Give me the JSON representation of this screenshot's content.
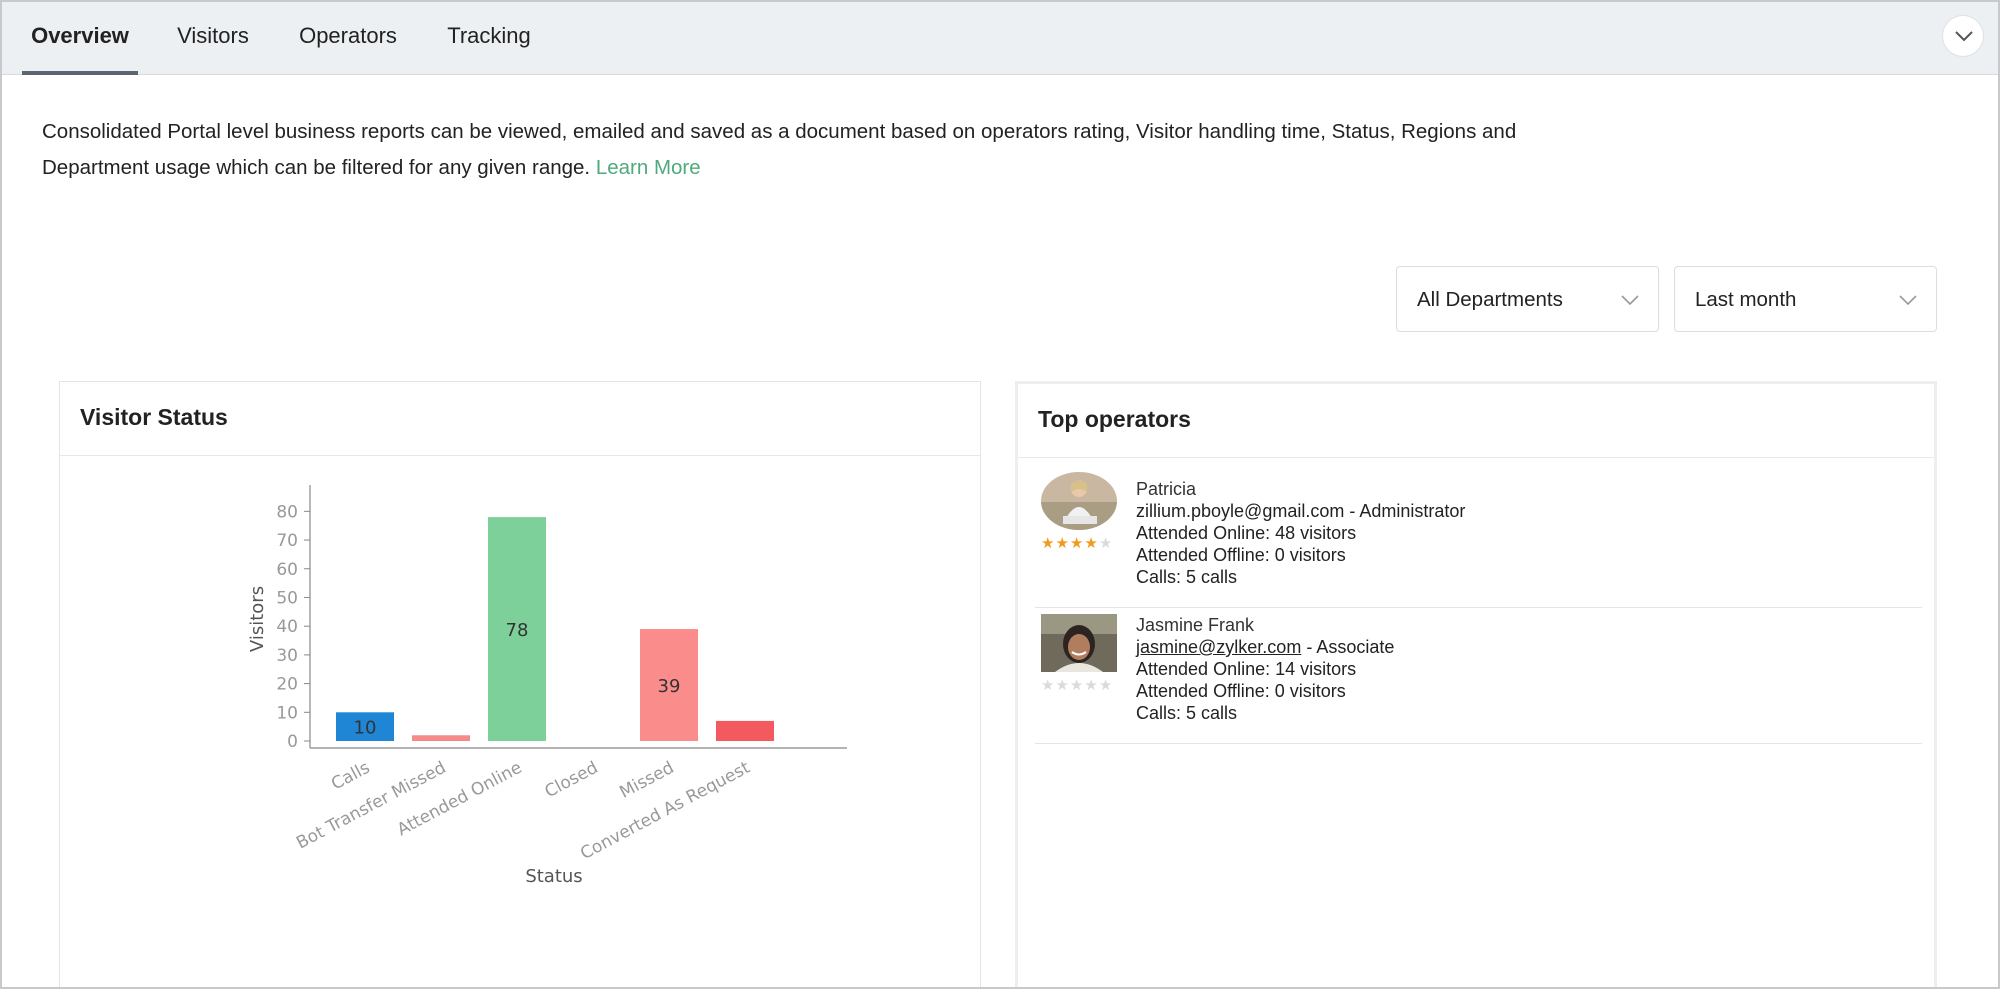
{
  "tabs": [
    {
      "label": "Overview",
      "active": true
    },
    {
      "label": "Visitors",
      "active": false
    },
    {
      "label": "Operators",
      "active": false
    },
    {
      "label": "Tracking",
      "active": false
    }
  ],
  "description": {
    "text": "Consolidated Portal level business reports can be viewed, emailed and saved as a document based on operators rating, Visitor handling time, Status, Regions and Department usage which can be filtered for any given range.",
    "learn_more": "Learn More"
  },
  "filters": {
    "department": "All Departments",
    "range": "Last month"
  },
  "visitor_status": {
    "title": "Visitor Status"
  },
  "chart_data": {
    "type": "bar",
    "title": "",
    "xlabel": "Status",
    "ylabel": "Visitors",
    "categories": [
      "Calls",
      "Bot Transfer Missed",
      "Attended Online",
      "Closed",
      "Missed",
      "Converted As Request"
    ],
    "values": [
      10,
      2,
      78,
      0,
      39,
      7
    ],
    "data_labels": [
      "10",
      "",
      "78",
      "",
      "39",
      ""
    ],
    "colors": [
      "#1f86d6",
      "#f48a8a",
      "#7ed09a",
      "#cccccc",
      "#fb8c8c",
      "#f25a60"
    ],
    "ylim": [
      0,
      85
    ],
    "yticks": [
      0,
      10,
      20,
      30,
      40,
      50,
      60,
      70,
      80
    ],
    "grid": false
  },
  "top_operators": {
    "title": "Top operators",
    "items": [
      {
        "name": "Patricia",
        "email": "zillium.pboyle@gmail.com",
        "role": "- Administrator",
        "online": "Attended Online: 48 visitors",
        "offline": "Attended Offline: 0 visitors",
        "calls": "Calls: 5 calls",
        "rating": 4,
        "max_rating": 5,
        "email_link": false
      },
      {
        "name": "Jasmine Frank",
        "email": "jasmine@zylker.com",
        "role": "- Associate",
        "online": "Attended Online: 14 visitors",
        "offline": "Attended Offline: 0 visitors",
        "calls": "Calls: 5 calls",
        "rating": 0,
        "max_rating": 5,
        "email_link": true
      }
    ]
  }
}
